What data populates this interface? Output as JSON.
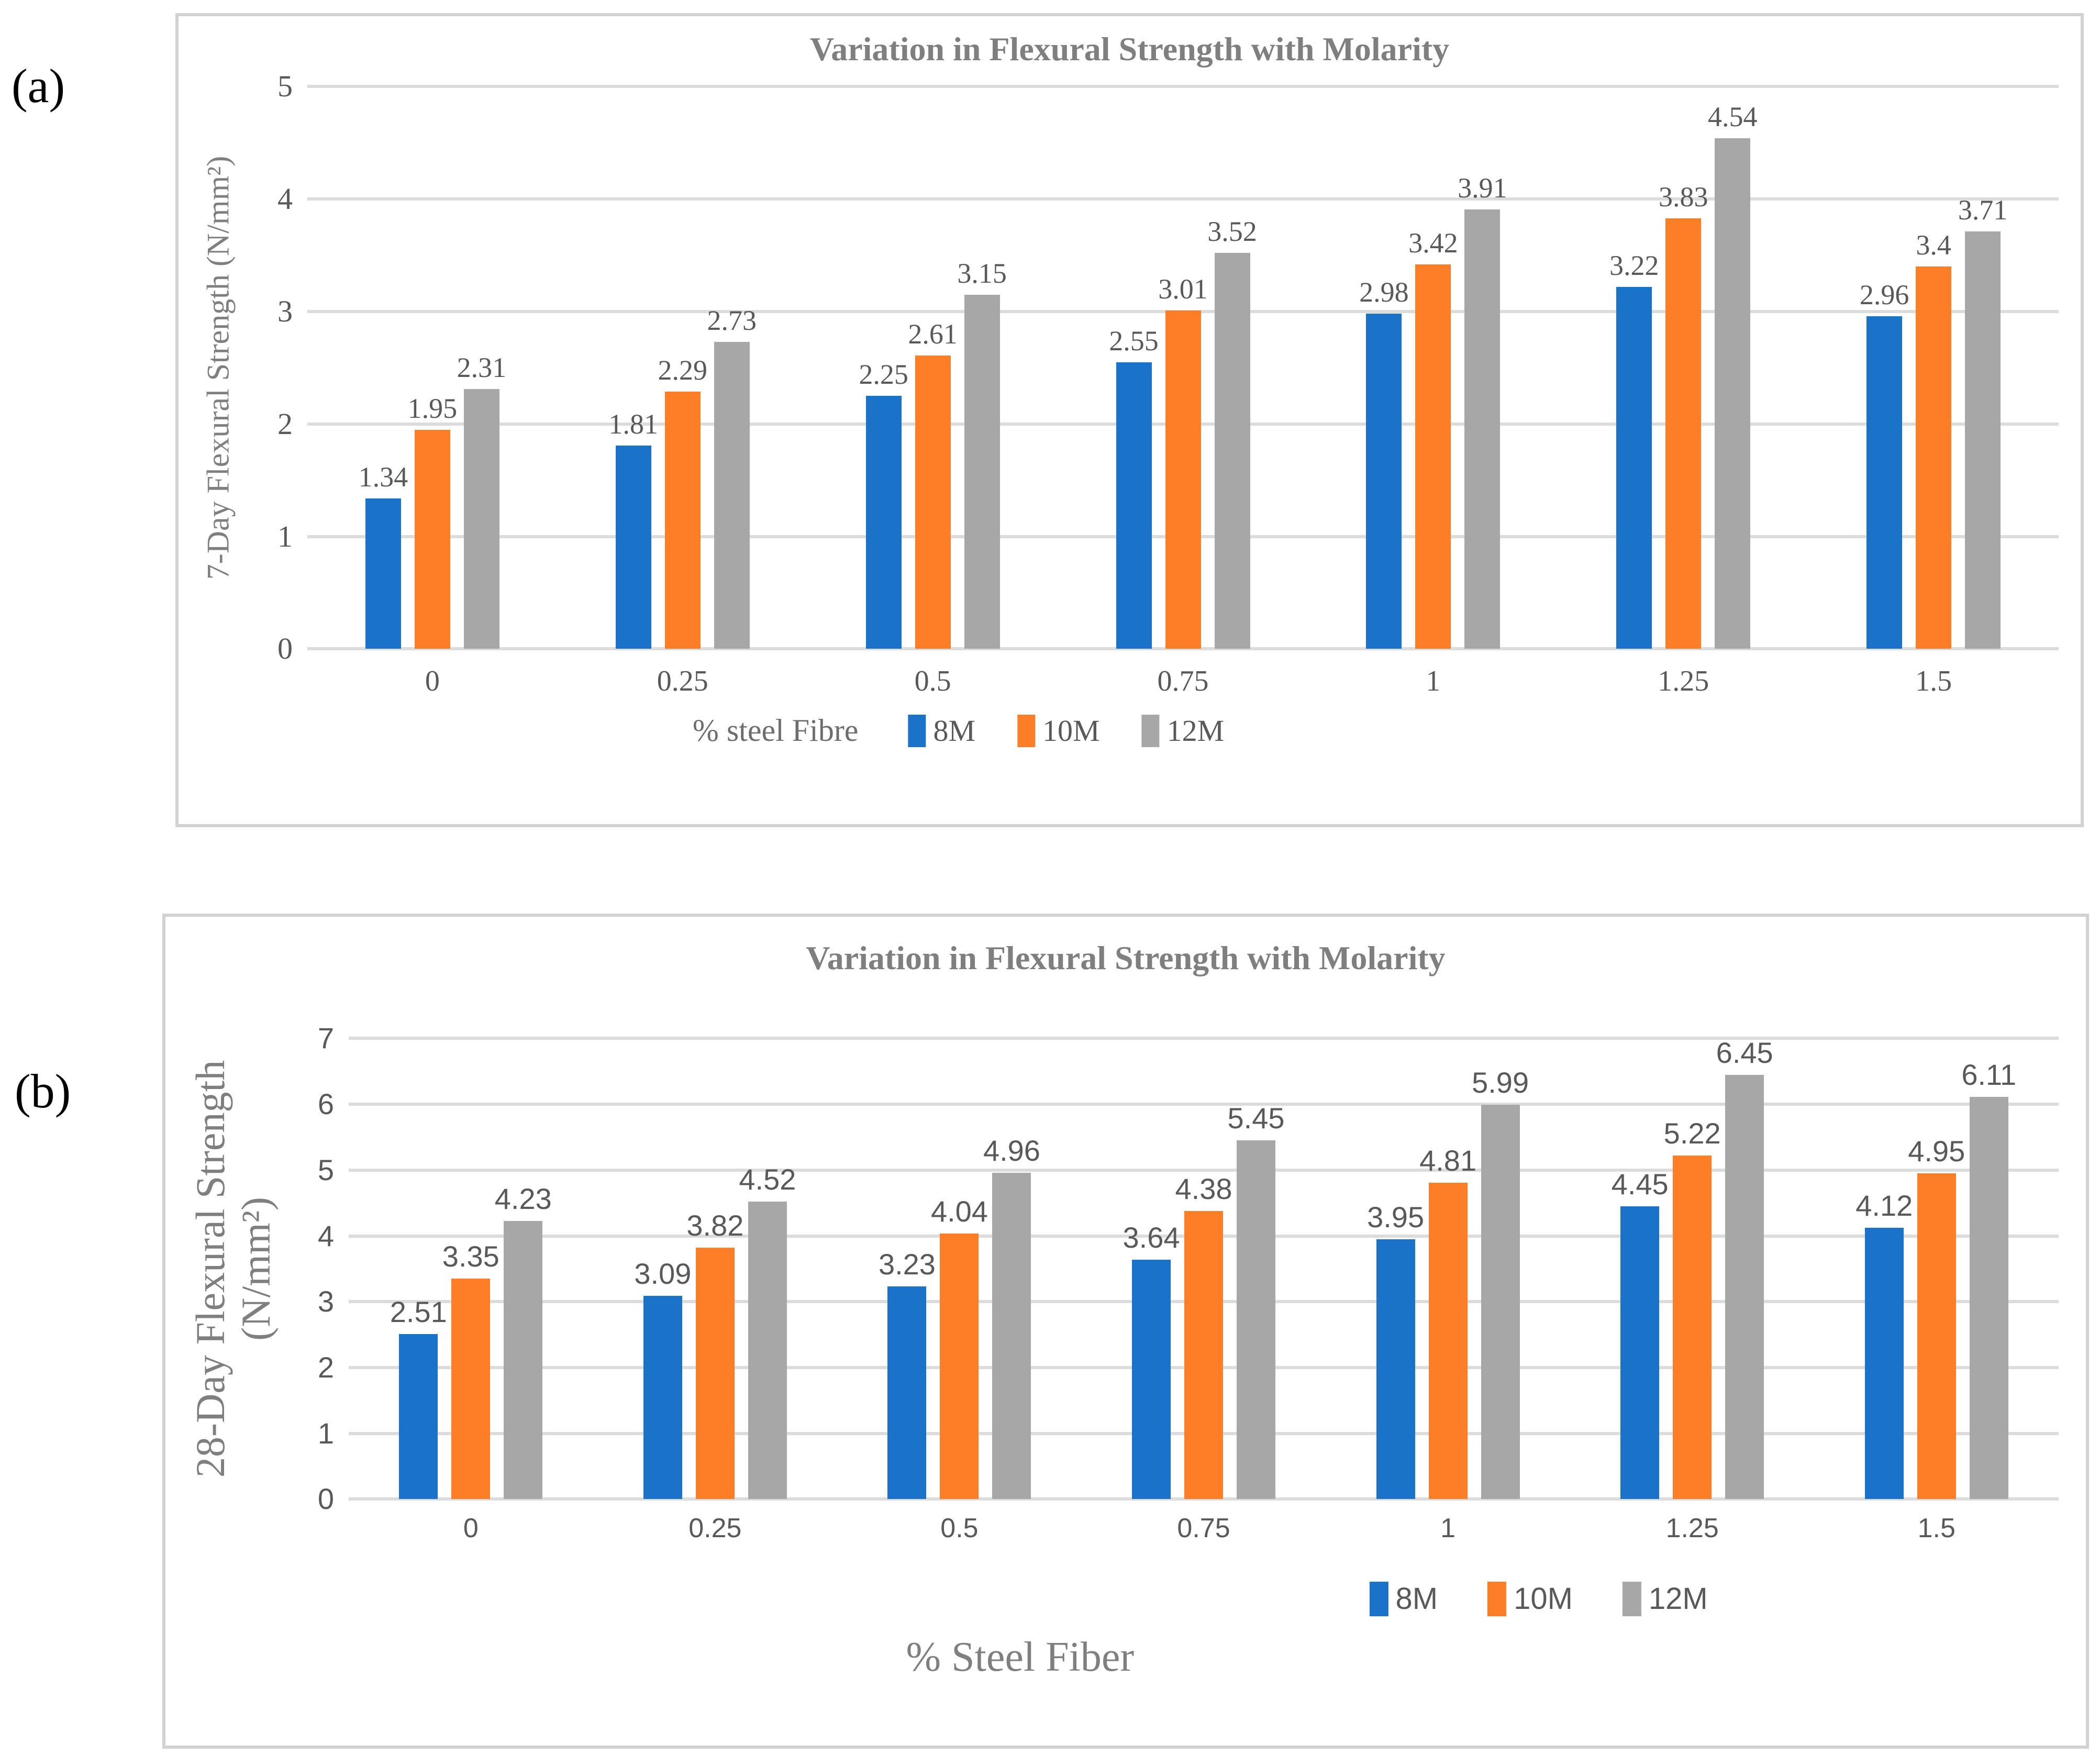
{
  "page": {
    "panel_a_tag": "(a)",
    "panel_b_tag": "(b)"
  },
  "colors": {
    "series_8m": "#1A73C8",
    "series_10m": "#FD7E26",
    "series_12m": "#A7A7A7",
    "grid": "#DCDCDC",
    "title_text": "#7F7F7F",
    "axis_title_text": "#6E6E6E",
    "label_text": "#595959"
  },
  "chart_data": [
    {
      "id": "a",
      "type": "bar",
      "title": "Variation in Flexural Strength with Molarity",
      "ylabel": "7-Day Flexural Strength (N/mm²)",
      "xlabel": "% steel Fibre",
      "categories": [
        "0",
        "0.25",
        "0.5",
        "0.75",
        "1",
        "1.25",
        "1.5"
      ],
      "series": [
        {
          "name": "8M",
          "color_key": "series_8m",
          "values": [
            1.34,
            1.81,
            2.25,
            2.55,
            2.98,
            3.22,
            2.96
          ]
        },
        {
          "name": "10M",
          "color_key": "series_10m",
          "values": [
            1.95,
            2.29,
            2.61,
            3.01,
            3.42,
            3.83,
            3.4
          ]
        },
        {
          "name": "12M",
          "color_key": "series_12m",
          "values": [
            2.31,
            2.73,
            3.15,
            3.52,
            3.91,
            4.54,
            3.71
          ]
        }
      ],
      "ylim": [
        0,
        5
      ],
      "yticks": [
        0,
        1,
        2,
        3,
        4,
        5
      ],
      "grid": true,
      "data_labels": "outside-end",
      "legend_position": "bottom-inline-with-x-title"
    },
    {
      "id": "b",
      "type": "bar",
      "title": "Variation in Flexural Strength with Molarity",
      "ylabel_line1": "28-Day Flexural Strength",
      "ylabel_line2": "(N/mm²)",
      "xlabel": "% Steel Fiber",
      "categories": [
        "0",
        "0.25",
        "0.5",
        "0.75",
        "1",
        "1.25",
        "1.5"
      ],
      "series": [
        {
          "name": "8M",
          "color_key": "series_8m",
          "values": [
            2.51,
            3.09,
            3.23,
            3.64,
            3.95,
            4.45,
            4.12
          ]
        },
        {
          "name": "10M",
          "color_key": "series_10m",
          "values": [
            3.35,
            3.82,
            4.04,
            4.38,
            4.81,
            5.22,
            4.95
          ]
        },
        {
          "name": "12M",
          "color_key": "series_12m",
          "values": [
            4.23,
            4.52,
            4.96,
            5.45,
            5.99,
            6.45,
            6.11
          ]
        }
      ],
      "ylim": [
        0,
        7
      ],
      "yticks": [
        0,
        1,
        2,
        3,
        4,
        5,
        6,
        7
      ],
      "grid": true,
      "data_labels": "outside-end",
      "legend_position": "bottom-right-of-center"
    }
  ]
}
